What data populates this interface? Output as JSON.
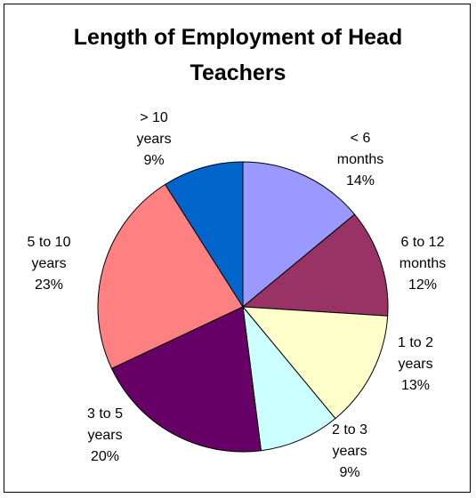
{
  "chart_data": {
    "type": "pie",
    "title": "Length of Employment of Head Teachers",
    "categories": [
      "< 6 months",
      "6 to 12 months",
      "1 to 2 years",
      "2 to 3 years",
      "3 to 5 years",
      "5 to 10 years",
      "> 10 years"
    ],
    "values": [
      14,
      12,
      13,
      9,
      20,
      23,
      9
    ],
    "value_labels": [
      "14%",
      "12%",
      "13%",
      "9%",
      "20%",
      "23%",
      "9%"
    ],
    "colors": [
      "#9999ff",
      "#993366",
      "#ffffcc",
      "#ccffff",
      "#660066",
      "#ff8080",
      "#0066cc"
    ]
  }
}
